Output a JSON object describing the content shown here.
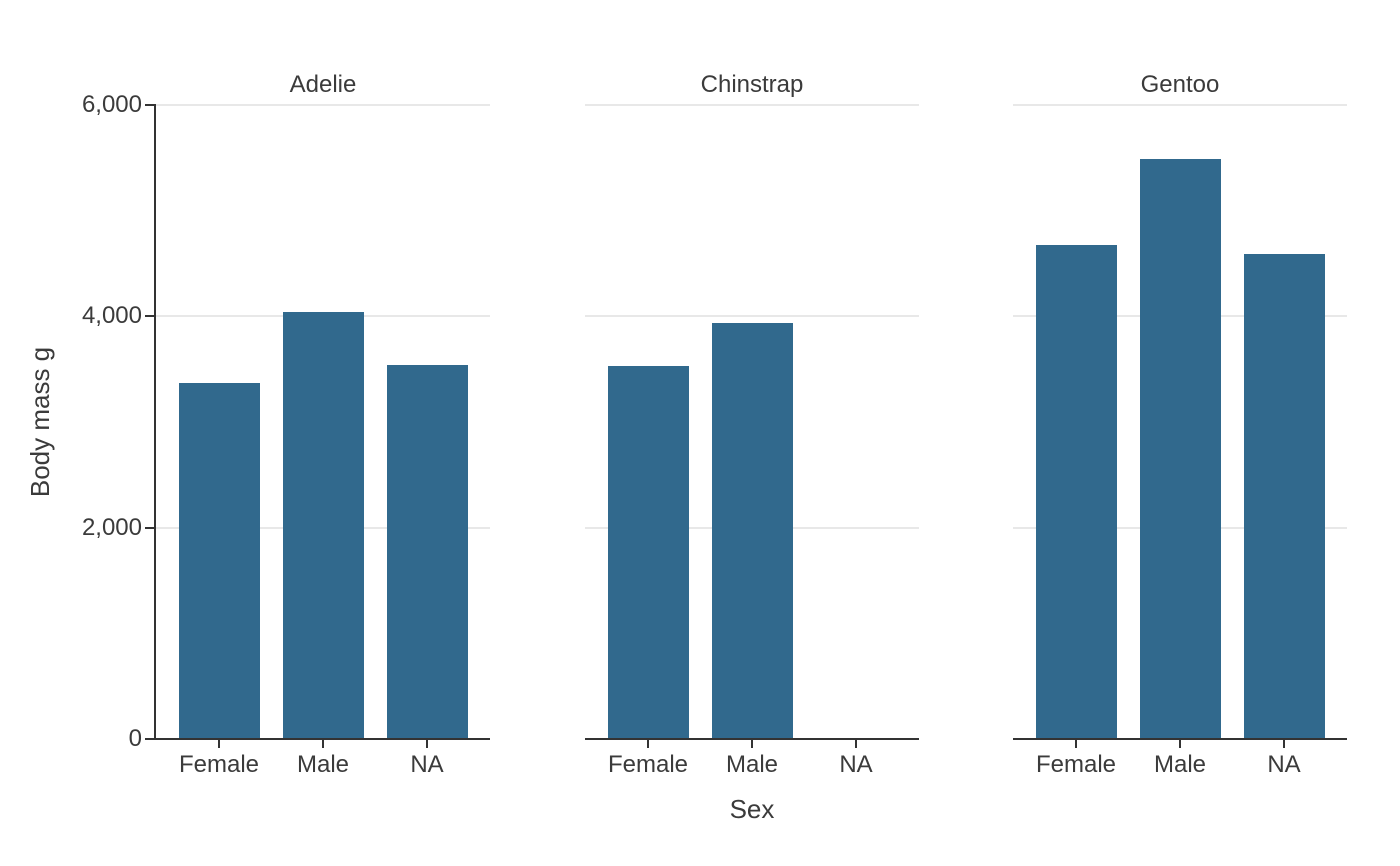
{
  "chart_data": {
    "type": "bar",
    "title": "",
    "facet_variable": "species",
    "facets": [
      {
        "title": "Adelie",
        "values": [
          3368.8,
          4043.5,
          3540.0
        ]
      },
      {
        "title": "Chinstrap",
        "values": [
          3527.2,
          3939.0,
          null
        ]
      },
      {
        "title": "Gentoo",
        "values": [
          4679.7,
          5484.8,
          4587.5
        ]
      }
    ],
    "categories": [
      "Female",
      "Male",
      "NA"
    ],
    "xlabel": "Sex",
    "ylabel": "Body mass g",
    "ylim": [
      0,
      6000
    ],
    "y_ticks": [
      0,
      2000,
      4000,
      6000
    ],
    "y_tick_labels": [
      "0",
      "2,000",
      "4,000",
      "6,000"
    ],
    "grid": "horizontal-only",
    "legend": "none",
    "colors": {
      "bar": "#31698d",
      "axis": "#333333",
      "grid": "#e8e8e8",
      "text": "#3b3b3b",
      "background": "#ffffff"
    }
  }
}
